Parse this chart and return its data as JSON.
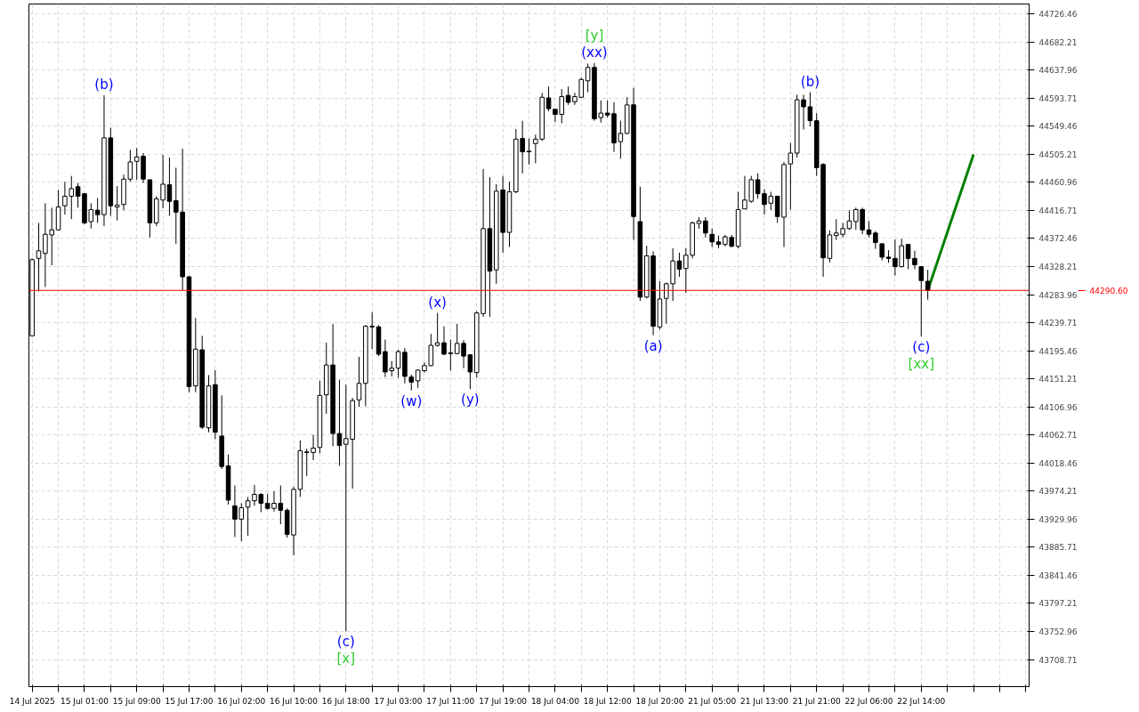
{
  "chart_data": {
    "type": "candlestick",
    "categories": [
      "14 Jul 2025",
      null,
      null,
      null,
      null,
      null,
      null,
      null,
      "15 Jul 01:00",
      null,
      null,
      null,
      null,
      null,
      null,
      null,
      "15 Jul 09:00",
      null,
      null,
      null,
      null,
      null,
      null,
      null,
      "15 Jul 17:00",
      null,
      null,
      null,
      null,
      null,
      null,
      null,
      "16 Jul 02:00",
      null,
      null,
      null,
      null,
      null,
      null,
      null,
      "16 Jul 10:00",
      null,
      null,
      null,
      null,
      null,
      null,
      null,
      "16 Jul 18:00",
      null,
      null,
      null,
      null,
      null,
      null,
      null,
      "17 Jul 03:00",
      null,
      null,
      null,
      null,
      null,
      null,
      null,
      "17 Jul 11:00",
      null,
      null,
      null,
      null,
      null,
      null,
      null,
      "17 Jul 19:00",
      null,
      null,
      null,
      null,
      null,
      null,
      null,
      "18 Jul 04:00",
      null,
      null,
      null,
      null,
      null,
      null,
      null,
      "18 Jul 12:00",
      null,
      null,
      null,
      null,
      null,
      null,
      null,
      "18 Jul 20:00",
      null,
      null,
      null,
      null,
      null,
      null,
      null,
      "21 Jul 05:00",
      null,
      null,
      null,
      null,
      null,
      null,
      null,
      "21 Jul 13:00",
      null,
      null,
      null,
      null,
      null,
      null,
      null,
      "21 Jul 21:00",
      null,
      null,
      null,
      null,
      null,
      null,
      null,
      "22 Jul 06:00",
      null,
      null,
      null,
      null,
      null,
      null,
      null,
      "22 Jul 14:00",
      null,
      null,
      null,
      null,
      null,
      null,
      null,
      null,
      null,
      null,
      null,
      null,
      null,
      null,
      null,
      null
    ],
    "ohlc": [
      [
        44219,
        44341,
        44219,
        44339
      ],
      [
        44341,
        44397,
        44289,
        44353
      ],
      [
        44349,
        44428,
        44296,
        44379
      ],
      [
        44378,
        44421,
        44330,
        44386
      ],
      [
        44386,
        44449,
        44385,
        44422
      ],
      [
        44424,
        44462,
        44410,
        44439
      ],
      [
        44439,
        44471,
        44403,
        44451
      ],
      [
        44454,
        44460,
        44421,
        44439
      ],
      [
        44443,
        44444,
        44395,
        44397
      ],
      [
        44399,
        44428,
        44388,
        44418
      ],
      [
        44417,
        44436,
        44397,
        44410
      ],
      [
        44410,
        44598,
        44392,
        44531
      ],
      [
        44531,
        44547,
        44408,
        44424
      ],
      [
        44422,
        44455,
        44401,
        44425
      ],
      [
        44426,
        44473,
        44417,
        44466
      ],
      [
        44466,
        44512,
        44462,
        44493
      ],
      [
        44494,
        44515,
        44465,
        44501
      ],
      [
        44502,
        44507,
        44460,
        44466
      ],
      [
        44465,
        44465,
        44374,
        44397
      ],
      [
        44397,
        44439,
        44392,
        44435
      ],
      [
        44433,
        44504,
        44420,
        44458
      ],
      [
        44457,
        44500,
        44408,
        44431
      ],
      [
        44432,
        44484,
        44364,
        44414
      ],
      [
        44414,
        44514,
        44291,
        44312
      ],
      [
        44312,
        44313,
        44130,
        44139
      ],
      [
        44140,
        44247,
        44130,
        44198
      ],
      [
        44197,
        44219,
        44072,
        44075
      ],
      [
        44074,
        44157,
        44067,
        44140
      ],
      [
        44142,
        44165,
        44056,
        44067
      ],
      [
        44061,
        44125,
        44009,
        44013
      ],
      [
        44014,
        44032,
        43953,
        43960
      ],
      [
        43951,
        43983,
        43902,
        43930
      ],
      [
        43930,
        43955,
        43895,
        43948
      ],
      [
        43949,
        43965,
        43904,
        43959
      ],
      [
        43959,
        43984,
        43951,
        43969
      ],
      [
        43969,
        43971,
        43941,
        43955
      ],
      [
        43955,
        43970,
        43945,
        43947
      ],
      [
        43947,
        43974,
        43942,
        43955
      ],
      [
        43955,
        43983,
        43922,
        43944
      ],
      [
        43944,
        43947,
        43901,
        43906
      ],
      [
        43905,
        43981,
        43873,
        43977
      ],
      [
        43977,
        44054,
        43965,
        44038
      ],
      [
        44035,
        44041,
        43998,
        44036
      ],
      [
        44035,
        44063,
        44023,
        44042
      ],
      [
        44043,
        44148,
        44034,
        44125
      ],
      [
        44126,
        44208,
        44096,
        44173
      ],
      [
        44173,
        44238,
        44045,
        44065
      ],
      [
        44065,
        44150,
        44014,
        44046
      ],
      [
        44048,
        44142,
        43753,
        44057
      ],
      [
        44056,
        44121,
        43978,
        44117
      ],
      [
        44118,
        44186,
        44107,
        44144
      ],
      [
        44144,
        44236,
        44108,
        44234
      ],
      [
        44234,
        44256,
        44198,
        44233
      ],
      [
        44233,
        44236,
        44187,
        44190
      ],
      [
        44194,
        44213,
        44154,
        44162
      ],
      [
        44164,
        44179,
        44155,
        44168
      ],
      [
        44168,
        44197,
        44153,
        44194
      ],
      [
        44193,
        44200,
        44144,
        44155
      ],
      [
        44154,
        44158,
        44133,
        44146
      ],
      [
        44148,
        44166,
        44137,
        44165
      ],
      [
        44164,
        44177,
        44161,
        44172
      ],
      [
        44172,
        44222,
        44171,
        44204
      ],
      [
        44204,
        44255,
        44202,
        44208
      ],
      [
        44208,
        44234,
        44189,
        44190
      ],
      [
        44192,
        44213,
        44164,
        44191
      ],
      [
        44191,
        44238,
        44190,
        44207
      ],
      [
        44207,
        44212,
        44168,
        44187
      ],
      [
        44189,
        44190,
        44135,
        44162
      ],
      [
        44161,
        44258,
        44153,
        44255
      ],
      [
        44254,
        44482,
        44249,
        44388
      ],
      [
        44388,
        44469,
        44249,
        44321
      ],
      [
        44323,
        44458,
        44301,
        44447
      ],
      [
        44449,
        44471,
        44350,
        44382
      ],
      [
        44382,
        44462,
        44359,
        44446
      ],
      [
        44446,
        44545,
        44444,
        44529
      ],
      [
        44530,
        44558,
        44475,
        44509
      ],
      [
        44510,
        44530,
        44489,
        44509
      ],
      [
        44522,
        44536,
        44491,
        44529
      ],
      [
        44529,
        44602,
        44526,
        44595
      ],
      [
        44594,
        44612,
        44573,
        44577
      ],
      [
        44576,
        44576,
        44556,
        44568
      ],
      [
        44568,
        44608,
        44554,
        44596
      ],
      [
        44598,
        44612,
        44583,
        44587
      ],
      [
        44588,
        44602,
        44583,
        44596
      ],
      [
        44595,
        44626,
        44595,
        44623
      ],
      [
        44621,
        44648,
        44603,
        44642
      ],
      [
        44642,
        44649,
        44558,
        44561
      ],
      [
        44563,
        44590,
        44555,
        44570
      ],
      [
        44570,
        44590,
        44563,
        44567
      ],
      [
        44569,
        44587,
        44509,
        44523
      ],
      [
        44525,
        44558,
        44498,
        44538
      ],
      [
        44538,
        44595,
        44537,
        44583
      ],
      [
        44583,
        44610,
        44370,
        44407
      ],
      [
        44399,
        44454,
        44274,
        44280
      ],
      [
        44280,
        44361,
        44278,
        44345
      ],
      [
        44345,
        44352,
        44220,
        44234
      ],
      [
        44233,
        44305,
        44229,
        44277
      ],
      [
        44278,
        44303,
        44238,
        44301
      ],
      [
        44301,
        44357,
        44274,
        44337
      ],
      [
        44337,
        44350,
        44312,
        44324
      ],
      [
        44325,
        44357,
        44287,
        44346
      ],
      [
        44346,
        44399,
        44341,
        44397
      ],
      [
        44396,
        44406,
        44388,
        44400
      ],
      [
        44400,
        44406,
        44374,
        44381
      ],
      [
        44379,
        44388,
        44359,
        44367
      ],
      [
        44367,
        44377,
        44357,
        44363
      ],
      [
        44363,
        44378,
        44360,
        44375
      ],
      [
        44374,
        44378,
        44359,
        44360
      ],
      [
        44360,
        44446,
        44357,
        44418
      ],
      [
        44419,
        44471,
        44419,
        44433
      ],
      [
        44431,
        44471,
        44429,
        44465
      ],
      [
        44465,
        44475,
        44435,
        44443
      ],
      [
        44443,
        44450,
        44410,
        44426
      ],
      [
        44428,
        44446,
        44417,
        44439
      ],
      [
        44439,
        44440,
        44397,
        44407
      ],
      [
        44406,
        44493,
        44359,
        44489
      ],
      [
        44490,
        44523,
        44418,
        44507
      ],
      [
        44507,
        44599,
        44500,
        44591
      ],
      [
        44591,
        44599,
        44544,
        44580
      ],
      [
        44580,
        44603,
        44549,
        44558
      ],
      [
        44558,
        44570,
        44471,
        44484
      ],
      [
        44489,
        44491,
        44312,
        44342
      ],
      [
        44341,
        44385,
        44335,
        44378
      ],
      [
        44377,
        44403,
        44370,
        44381
      ],
      [
        44379,
        44397,
        44374,
        44388
      ],
      [
        44388,
        44417,
        44386,
        44400
      ],
      [
        44399,
        44421,
        44386,
        44418
      ],
      [
        44418,
        44421,
        44379,
        44386
      ],
      [
        44386,
        44400,
        44374,
        44379
      ],
      [
        44381,
        44384,
        44356,
        44366
      ],
      [
        44364,
        44365,
        44338,
        44343
      ],
      [
        44343,
        44354,
        44334,
        44341
      ],
      [
        44341,
        44371,
        44314,
        44328
      ],
      [
        44328,
        44372,
        44327,
        44361
      ],
      [
        44363,
        44364,
        44324,
        44341
      ],
      [
        44341,
        44353,
        44324,
        44331
      ],
      [
        44328,
        44329,
        44218,
        44306
      ],
      [
        44305,
        44323,
        44276,
        44290.6
      ],
      null,
      null,
      null,
      null,
      null,
      null,
      null,
      null,
      null,
      null,
      null,
      null,
      null,
      null,
      null
    ],
    "series": [
      {
        "type": "line",
        "color": "#008000",
        "values": [
          null,
          null,
          null,
          null,
          null,
          null,
          null,
          null,
          null,
          null,
          null,
          null,
          null,
          null,
          null,
          null,
          null,
          null,
          null,
          null,
          null,
          null,
          null,
          null,
          null,
          null,
          null,
          null,
          null,
          null,
          null,
          null,
          null,
          null,
          null,
          null,
          null,
          null,
          null,
          null,
          null,
          null,
          null,
          null,
          null,
          null,
          null,
          null,
          null,
          null,
          null,
          null,
          null,
          null,
          null,
          null,
          null,
          null,
          null,
          null,
          null,
          null,
          null,
          null,
          null,
          null,
          null,
          null,
          null,
          null,
          null,
          null,
          null,
          null,
          null,
          null,
          null,
          null,
          null,
          null,
          null,
          null,
          null,
          null,
          null,
          null,
          null,
          null,
          null,
          null,
          null,
          null,
          null,
          null,
          null,
          null,
          null,
          null,
          null,
          null,
          null,
          null,
          null,
          null,
          null,
          null,
          null,
          null,
          null,
          null,
          null,
          null,
          null,
          null,
          null,
          null,
          null,
          null,
          null,
          null,
          null,
          null,
          null,
          null,
          null,
          null,
          null,
          null,
          null,
          null,
          null,
          null,
          null,
          null,
          null,
          null,
          null,
          44290.6,
          null,
          null,
          null,
          null,
          null,
          null,
          44505,
          null,
          null,
          null,
          null,
          null,
          null,
          null,
          null
        ]
      }
    ],
    "ylim": [
      43666,
      44742
    ],
    "yticks": [
      43708.71,
      43752.96,
      43797.21,
      43841.46,
      43885.71,
      43929.96,
      43974.21,
      44018.46,
      44062.71,
      44106.96,
      44151.21,
      44195.46,
      44239.71,
      44283.96,
      44328.21,
      44372.46,
      44416.71,
      44460.96,
      44505.21,
      44549.46,
      44593.71,
      44637.96,
      44682.21,
      44726.46
    ],
    "grid": true,
    "ref_lines": [
      {
        "axis": "y",
        "value": 44290.6,
        "label": "44290.60",
        "color": "#ff0000"
      }
    ],
    "annotations": [
      {
        "text": "(b)",
        "y": 44598
      },
      {
        "text": "(c)",
        "y": 43753
      },
      {
        "text": "[x]",
        "y": 43753
      },
      {
        "text": "(w)",
        "y": 44133
      },
      {
        "text": "(x)",
        "y": 44255
      },
      {
        "text": "(y)",
        "y": 44135
      },
      {
        "text": "(xx)",
        "y": 44649
      },
      {
        "text": "[y]",
        "y": 44649
      },
      {
        "text": "(a)",
        "y": 44220
      },
      {
        "text": "(b)",
        "y": 44603
      },
      {
        "text": "(c)",
        "y": 44218
      },
      {
        "text": "[xx]",
        "y": 44218
      }
    ]
  }
}
